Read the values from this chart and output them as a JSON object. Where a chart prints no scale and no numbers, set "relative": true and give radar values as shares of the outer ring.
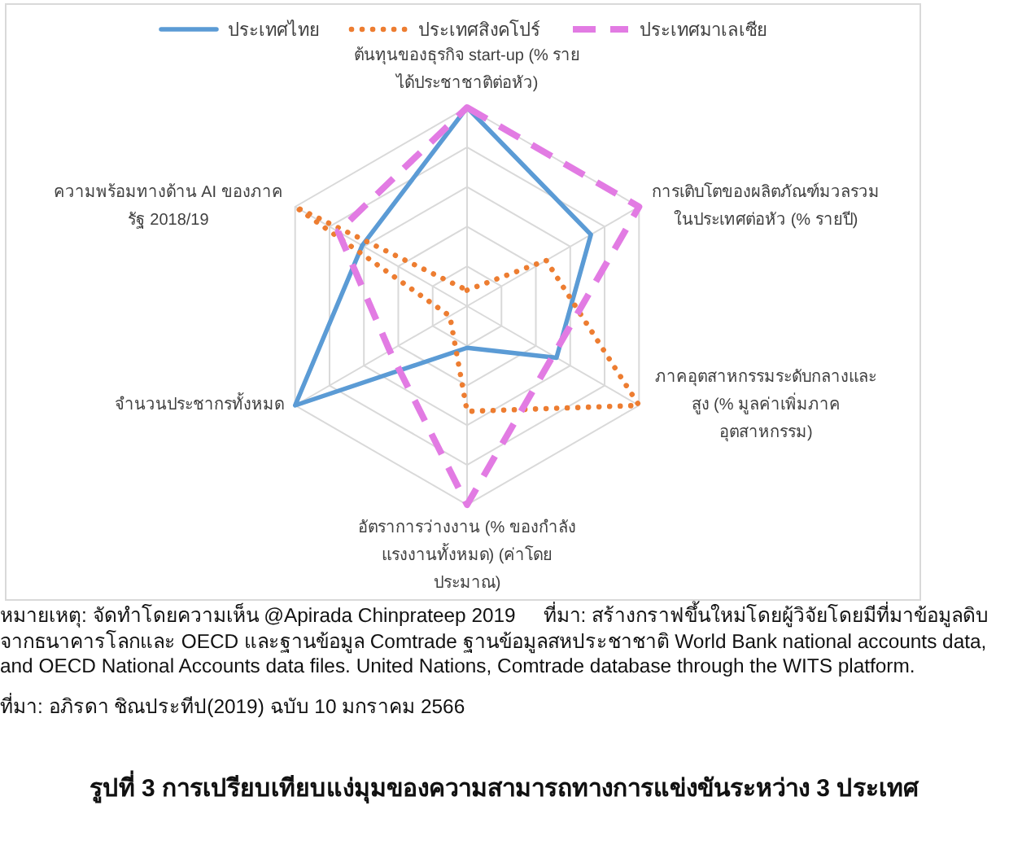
{
  "chart_data": {
    "type": "radar",
    "title": "รูปที่ 3 การเปรียบเทียบแง่มุมของความสามารถทางการแข่งขันระหว่าง 3 ประเทศ",
    "categories": [
      "ต้นทุนของธุรกิจ start-up (% รายได้ประชาชาติต่อหัว)",
      "การเติบโตของผลิตภัณฑ์มวลรวมในประเทศต่อหัว (% รายปี)",
      "ภาคอุตสาหกรรมระดับกลางและสูง (% มูลค่าเพิ่มภาคอุตสาหกรรม)",
      "อัตราการว่างงาน (% ของกำลังแรงงานทั้งหมด) (ค่าโดยประมาณ)",
      "จำนวนประชากรทั้งหมด",
      "ความพร้อมทางด้าน AI ของภาครัฐ 2018/19"
    ],
    "relative": true,
    "series": [
      {
        "name": "ประเทศไทย",
        "color": "#5b9bd5",
        "line_style": "solid",
        "values": [
          1.0,
          0.72,
          0.52,
          0.21,
          1.0,
          0.61
        ]
      },
      {
        "name": "ประเทศสิงคโปร์",
        "color": "#ed7d31",
        "line_style": "dotted",
        "values": [
          0.08,
          0.46,
          1.0,
          0.53,
          0.1,
          1.0
        ]
      },
      {
        "name": "ประเทศมาเลเซีย",
        "color": "#e27be3",
        "line_style": "dashed",
        "values": [
          1.0,
          1.0,
          0.5,
          1.0,
          0.45,
          0.75
        ]
      }
    ],
    "grid": true,
    "legend": "top",
    "annotations": [
      "หมายเหตุ: จัดทำโดยความเห็น @Apirada Chinprateep 2019     ที่มา: สร้างกราฟขึ้นใหม่โดยผู้วิจัยโดยมีที่มาข้อมูลดิบจากธนาคารโลกและ OECD และฐานข้อมูล Comtrade ฐานข้อมูลสหประชาชาติ World Bank national accounts data, and OECD National Accounts data files. United Nations, Comtrade database through the WITS platform.",
      "ที่มา: อภิรดา ชิณประทีป(2019) ฉบับ 10 มกราคม 2566"
    ]
  }
}
